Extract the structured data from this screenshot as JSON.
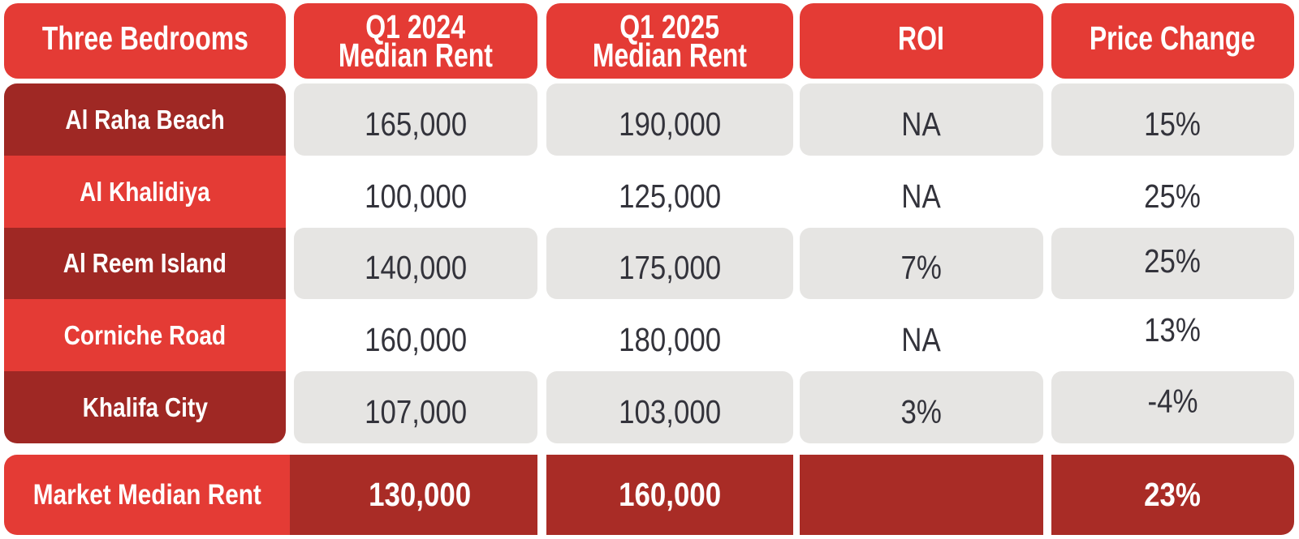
{
  "colors": {
    "bright_red": "#e43b35",
    "dark_red": "#9f2824",
    "footer_dark_red": "#a92c26",
    "cell_gray": "#e6e5e3",
    "value_text": "#33333b",
    "header_text": "#ffffff",
    "background": "#ffffff"
  },
  "header_display": [
    {
      "label": "Three Bedrooms"
    },
    {
      "line1": "Q1 2024",
      "line2": "Median Rent"
    },
    {
      "line1": "Q1 2025",
      "line2": "Median Rent"
    },
    {
      "label": "ROI"
    },
    {
      "label": "Price Change"
    }
  ],
  "chart_data": {
    "type": "table",
    "title": "Three Bedrooms",
    "columns": [
      "Three Bedrooms",
      "Q1 2024 Median Rent",
      "Q1 2025 Median Rent",
      "ROI",
      "Price Change"
    ],
    "rows": [
      [
        "Al Raha Beach",
        "165,000",
        "190,000",
        "NA",
        "15%"
      ],
      [
        "Al Khalidiya",
        "100,000",
        "125,000",
        "NA",
        "25%"
      ],
      [
        "Al Reem Island",
        "140,000",
        "175,000",
        "7%",
        "25%"
      ],
      [
        "Corniche Road",
        "160,000",
        "180,000",
        "NA",
        "13%"
      ],
      [
        "Khalifa City",
        "107,000",
        "103,000",
        "3%",
        "-4%"
      ]
    ],
    "footer": [
      "Market Median Rent",
      "130,000",
      "160,000",
      "",
      "23%"
    ]
  }
}
